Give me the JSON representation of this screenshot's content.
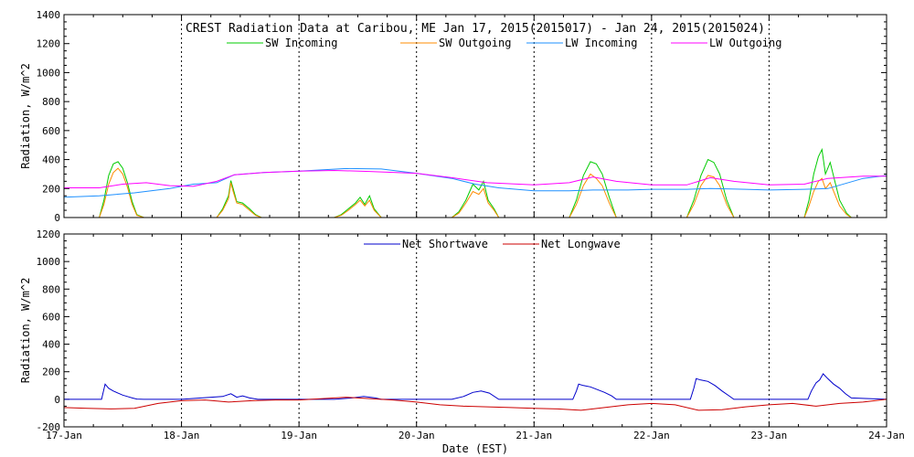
{
  "chart_data": [
    {
      "type": "line",
      "title": "CREST Radiation Data at Caribou, ME   Jan 17, 2015(2015017) - Jan 24, 2015(2015024)",
      "xlabel": "",
      "ylabel": "Radiation, W/m^2",
      "xlim": [
        0,
        7
      ],
      "ylim": [
        0,
        1400
      ],
      "yticks": [
        "0",
        "200",
        "400",
        "600",
        "800",
        "1000",
        "1200",
        "1400"
      ],
      "grid": true,
      "legend_position": "top",
      "series": [
        {
          "name": "SW Incoming",
          "color": "#00cc00",
          "x": [
            0,
            0.3,
            0.34,
            0.38,
            0.42,
            0.46,
            0.5,
            0.54,
            0.58,
            0.62,
            0.68,
            1.0,
            1.3,
            1.35,
            1.4,
            1.42,
            1.44,
            1.47,
            1.52,
            1.58,
            1.63,
            1.68,
            1.72,
            2.0,
            2.3,
            2.36,
            2.42,
            2.48,
            2.52,
            2.56,
            2.6,
            2.64,
            2.7,
            3.0,
            3.3,
            3.36,
            3.42,
            3.48,
            3.53,
            3.57,
            3.61,
            3.66,
            3.7,
            4.0,
            4.3,
            4.36,
            4.42,
            4.48,
            4.53,
            4.58,
            4.64,
            4.7,
            5.0,
            5.3,
            5.36,
            5.42,
            5.48,
            5.53,
            5.58,
            5.64,
            5.7,
            6.0,
            6.3,
            6.34,
            6.38,
            6.42,
            6.45,
            6.48,
            6.52,
            6.56,
            6.6,
            6.66,
            6.7,
            7.0
          ],
          "y": [
            0,
            0,
            120,
            290,
            370,
            385,
            340,
            240,
            110,
            20,
            0,
            0,
            0,
            60,
            150,
            255,
            200,
            110,
            100,
            60,
            20,
            0,
            0,
            0,
            0,
            20,
            60,
            100,
            140,
            90,
            150,
            60,
            0,
            0,
            0,
            40,
            120,
            230,
            190,
            250,
            120,
            60,
            0,
            0,
            0,
            120,
            290,
            385,
            370,
            300,
            140,
            0,
            0,
            0,
            120,
            290,
            400,
            380,
            300,
            120,
            0,
            0,
            0,
            120,
            300,
            420,
            470,
            300,
            380,
            250,
            120,
            30,
            0,
            0
          ]
        },
        {
          "name": "SW Outgoing",
          "color": "#ff8c00",
          "x": [
            0,
            0.3,
            0.34,
            0.38,
            0.42,
            0.46,
            0.5,
            0.54,
            0.58,
            0.62,
            0.68,
            1.0,
            1.3,
            1.35,
            1.4,
            1.42,
            1.44,
            1.47,
            1.52,
            1.58,
            1.63,
            1.68,
            1.72,
            2.0,
            2.3,
            2.36,
            2.42,
            2.48,
            2.52,
            2.56,
            2.6,
            2.64,
            2.7,
            3.0,
            3.3,
            3.36,
            3.42,
            3.48,
            3.53,
            3.57,
            3.61,
            3.66,
            3.7,
            4.0,
            4.3,
            4.36,
            4.42,
            4.48,
            4.53,
            4.58,
            4.64,
            4.7,
            5.0,
            5.3,
            5.36,
            5.42,
            5.48,
            5.53,
            5.58,
            5.64,
            5.7,
            6.0,
            6.3,
            6.34,
            6.38,
            6.42,
            6.45,
            6.48,
            6.52,
            6.56,
            6.6,
            6.66,
            6.7,
            7.0
          ],
          "y": [
            0,
            0,
            90,
            230,
            310,
            340,
            300,
            210,
            90,
            15,
            0,
            0,
            0,
            50,
            130,
            240,
            180,
            100,
            90,
            50,
            15,
            0,
            0,
            0,
            0,
            15,
            50,
            90,
            120,
            80,
            120,
            50,
            0,
            0,
            0,
            30,
            100,
            180,
            160,
            200,
            100,
            50,
            0,
            0,
            0,
            90,
            220,
            300,
            270,
            220,
            100,
            0,
            0,
            0,
            90,
            220,
            290,
            280,
            220,
            90,
            0,
            0,
            0,
            80,
            180,
            250,
            270,
            200,
            240,
            160,
            80,
            20,
            0,
            0
          ]
        },
        {
          "name": "LW Incoming",
          "color": "#1e90ff",
          "x": [
            0,
            0.3,
            0.6,
            0.9,
            1.1,
            1.3,
            1.45,
            1.7,
            2.0,
            2.4,
            2.7,
            3.0,
            3.3,
            3.5,
            3.7,
            4.0,
            4.3,
            4.5,
            4.8,
            5.0,
            5.3,
            5.5,
            5.8,
            6.0,
            6.3,
            6.5,
            6.8,
            7.0
          ],
          "y": [
            140,
            150,
            170,
            200,
            230,
            240,
            295,
            310,
            320,
            338,
            335,
            305,
            270,
            230,
            205,
            185,
            185,
            190,
            190,
            195,
            195,
            200,
            195,
            190,
            195,
            200,
            270,
            290
          ]
        },
        {
          "name": "LW Outgoing",
          "color": "#ff00ff",
          "x": [
            0,
            0.3,
            0.5,
            0.7,
            0.9,
            1.1,
            1.3,
            1.45,
            1.7,
            2.0,
            2.3,
            2.6,
            3.0,
            3.3,
            3.6,
            4.0,
            4.3,
            4.5,
            4.7,
            5.0,
            5.3,
            5.5,
            5.7,
            6.0,
            6.3,
            6.5,
            6.8,
            7.0
          ],
          "y": [
            205,
            205,
            230,
            240,
            220,
            215,
            250,
            295,
            310,
            320,
            325,
            318,
            305,
            275,
            240,
            225,
            240,
            280,
            250,
            225,
            225,
            275,
            250,
            225,
            230,
            270,
            285,
            285
          ]
        }
      ]
    },
    {
      "type": "line",
      "title": "",
      "xlabel": "Date (EST)",
      "ylabel": "Radiation, W/m^2",
      "xlim": [
        0,
        7
      ],
      "ylim": [
        -200,
        1200
      ],
      "yticks": [
        "-200",
        "0",
        "200",
        "400",
        "600",
        "800",
        "1000",
        "1200"
      ],
      "categories": [
        "17-Jan",
        "18-Jan",
        "19-Jan",
        "20-Jan",
        "21-Jan",
        "22-Jan",
        "23-Jan",
        "24-Jan"
      ],
      "grid": true,
      "legend_position": "top",
      "series": [
        {
          "name": "Net Shortwave",
          "color": "#0000cc",
          "x": [
            0,
            0.32,
            0.35,
            0.38,
            0.42,
            0.46,
            0.5,
            0.54,
            0.58,
            0.62,
            0.68,
            1.0,
            1.35,
            1.42,
            1.47,
            1.52,
            1.58,
            1.65,
            2.0,
            2.3,
            2.45,
            2.55,
            2.65,
            2.7,
            3.0,
            3.3,
            3.4,
            3.48,
            3.55,
            3.62,
            3.7,
            4.0,
            4.33,
            4.36,
            4.38,
            4.42,
            4.48,
            4.54,
            4.6,
            4.66,
            4.7,
            5.0,
            5.33,
            5.36,
            5.38,
            5.42,
            5.48,
            5.54,
            5.6,
            5.66,
            5.7,
            6.0,
            6.33,
            6.36,
            6.4,
            6.43,
            6.46,
            6.5,
            6.55,
            6.6,
            6.65,
            6.7,
            7.0
          ],
          "y": [
            0,
            0,
            110,
            80,
            60,
            45,
            30,
            20,
            10,
            2,
            0,
            0,
            20,
            40,
            15,
            25,
            10,
            0,
            0,
            0,
            10,
            20,
            10,
            0,
            0,
            0,
            20,
            50,
            60,
            45,
            0,
            0,
            0,
            60,
            110,
            100,
            90,
            70,
            50,
            25,
            0,
            0,
            0,
            80,
            150,
            140,
            130,
            100,
            60,
            25,
            0,
            0,
            0,
            60,
            120,
            140,
            185,
            150,
            110,
            80,
            40,
            10,
            0
          ]
        },
        {
          "name": "Net Longwave",
          "color": "#cc0000",
          "x": [
            0,
            0.2,
            0.4,
            0.6,
            0.8,
            1.0,
            1.2,
            1.4,
            1.6,
            1.8,
            2.0,
            2.2,
            2.4,
            2.6,
            2.8,
            3.0,
            3.2,
            3.4,
            3.6,
            3.8,
            4.0,
            4.2,
            4.4,
            4.6,
            4.8,
            5.0,
            5.2,
            5.4,
            5.6,
            5.8,
            6.0,
            6.2,
            6.4,
            6.6,
            6.8,
            7.0
          ],
          "y": [
            -60,
            -65,
            -70,
            -65,
            -30,
            -10,
            -5,
            -20,
            -10,
            -5,
            -5,
            5,
            15,
            5,
            -5,
            -20,
            -40,
            -50,
            -55,
            -60,
            -65,
            -70,
            -80,
            -60,
            -40,
            -30,
            -40,
            -80,
            -75,
            -55,
            -40,
            -30,
            -50,
            -30,
            -20,
            0
          ]
        }
      ]
    }
  ]
}
